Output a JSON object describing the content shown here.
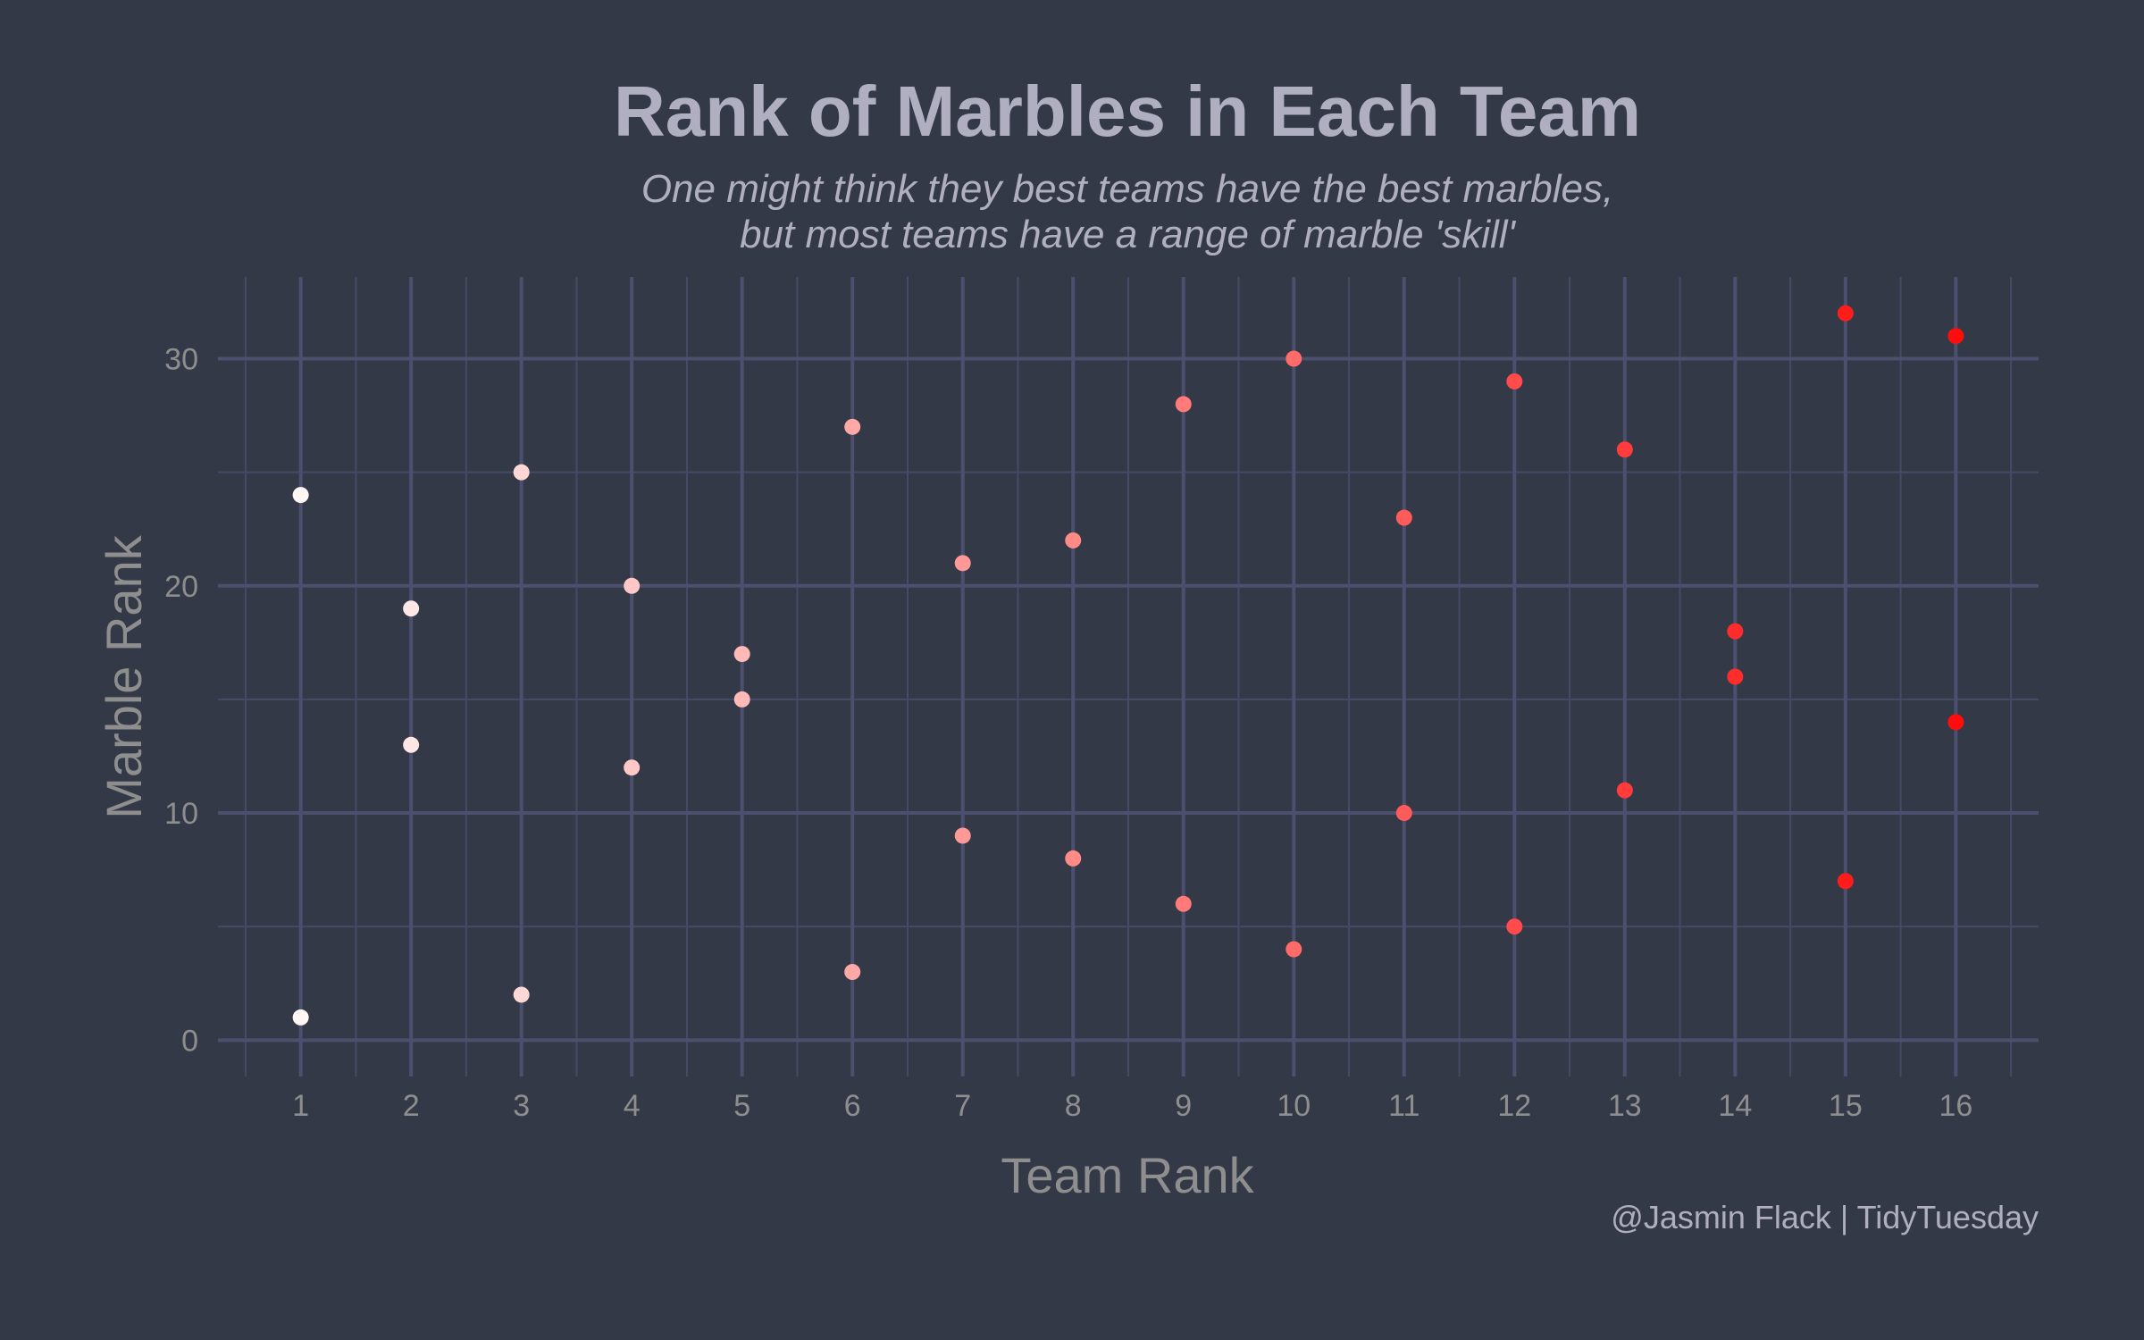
{
  "colors": {
    "background": "#343947",
    "grid_major": "#4c4f6e",
    "grid_minor": "#474a66",
    "text_title": "#b0afc2",
    "text_axis": "#8e8e8e",
    "point_low": "#fff7f4",
    "point_high": "#ff0d0d"
  },
  "chart_data": {
    "type": "scatter",
    "title": "Rank of Marbles in Each Team",
    "subtitle_lines": [
      "One might think they best teams have the best marbles,",
      "but most teams have a range of marble 'skill'"
    ],
    "xlabel": "Team Rank",
    "ylabel": "Marble Rank",
    "caption": "@Jasmin Flack | TidyTuesday",
    "xlim": [
      0.25,
      16.75
    ],
    "ylim": [
      -1.6,
      33.6
    ],
    "x_ticks": [
      "1",
      "2",
      "3",
      "4",
      "5",
      "6",
      "7",
      "8",
      "9",
      "10",
      "11",
      "12",
      "13",
      "14",
      "15",
      "16"
    ],
    "y_ticks": [
      "0",
      "10",
      "20",
      "30"
    ],
    "grid": true,
    "legend": "none",
    "points": [
      {
        "x": 1,
        "y": 24
      },
      {
        "x": 1,
        "y": 1
      },
      {
        "x": 2,
        "y": 19
      },
      {
        "x": 2,
        "y": 13
      },
      {
        "x": 3,
        "y": 25
      },
      {
        "x": 3,
        "y": 2
      },
      {
        "x": 4,
        "y": 20
      },
      {
        "x": 4,
        "y": 12
      },
      {
        "x": 5,
        "y": 17
      },
      {
        "x": 5,
        "y": 15
      },
      {
        "x": 6,
        "y": 27
      },
      {
        "x": 6,
        "y": 3
      },
      {
        "x": 7,
        "y": 21
      },
      {
        "x": 7,
        "y": 9
      },
      {
        "x": 8,
        "y": 22
      },
      {
        "x": 8,
        "y": 8
      },
      {
        "x": 9,
        "y": 28
      },
      {
        "x": 9,
        "y": 6
      },
      {
        "x": 10,
        "y": 30
      },
      {
        "x": 10,
        "y": 4
      },
      {
        "x": 11,
        "y": 23
      },
      {
        "x": 11,
        "y": 10
      },
      {
        "x": 12,
        "y": 29
      },
      {
        "x": 12,
        "y": 5
      },
      {
        "x": 13,
        "y": 26
      },
      {
        "x": 13,
        "y": 11
      },
      {
        "x": 14,
        "y": 18
      },
      {
        "x": 14,
        "y": 16
      },
      {
        "x": 15,
        "y": 32
      },
      {
        "x": 15,
        "y": 7
      },
      {
        "x": 16,
        "y": 31
      },
      {
        "x": 16,
        "y": 14
      }
    ]
  }
}
